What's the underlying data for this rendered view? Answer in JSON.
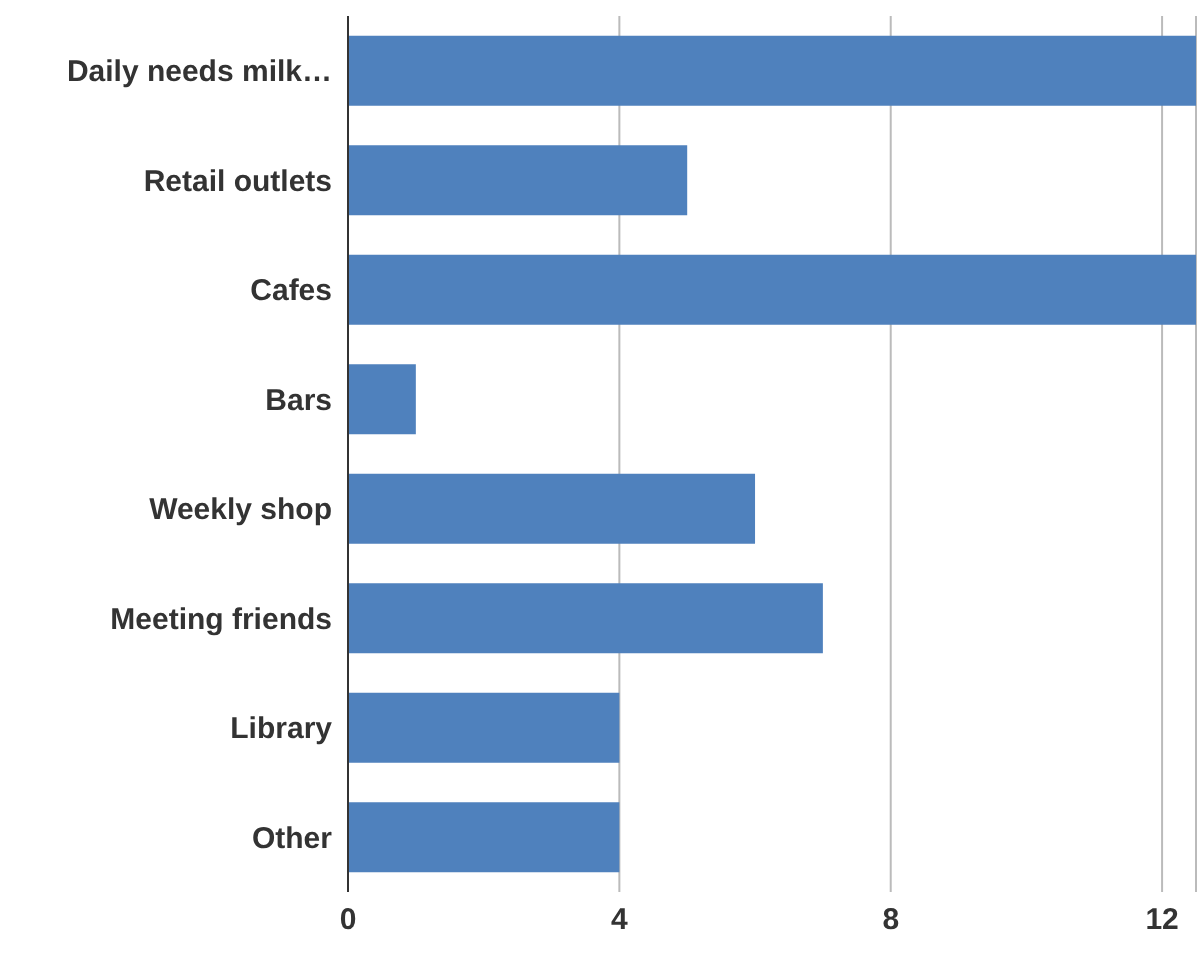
{
  "chart_data": {
    "type": "bar",
    "orientation": "horizontal",
    "categories": [
      "Daily needs milk…",
      "Retail outlets",
      "Cafes",
      "Bars",
      "Weekly shop",
      "Meeting friends",
      "Library",
      "Other"
    ],
    "values": [
      12.5,
      5,
      12.5,
      1,
      6,
      7,
      4,
      4
    ],
    "color": "#4f81bd",
    "xlim": [
      0,
      12.5
    ],
    "xticks": [
      0,
      4,
      8,
      12
    ],
    "grid": "x"
  }
}
